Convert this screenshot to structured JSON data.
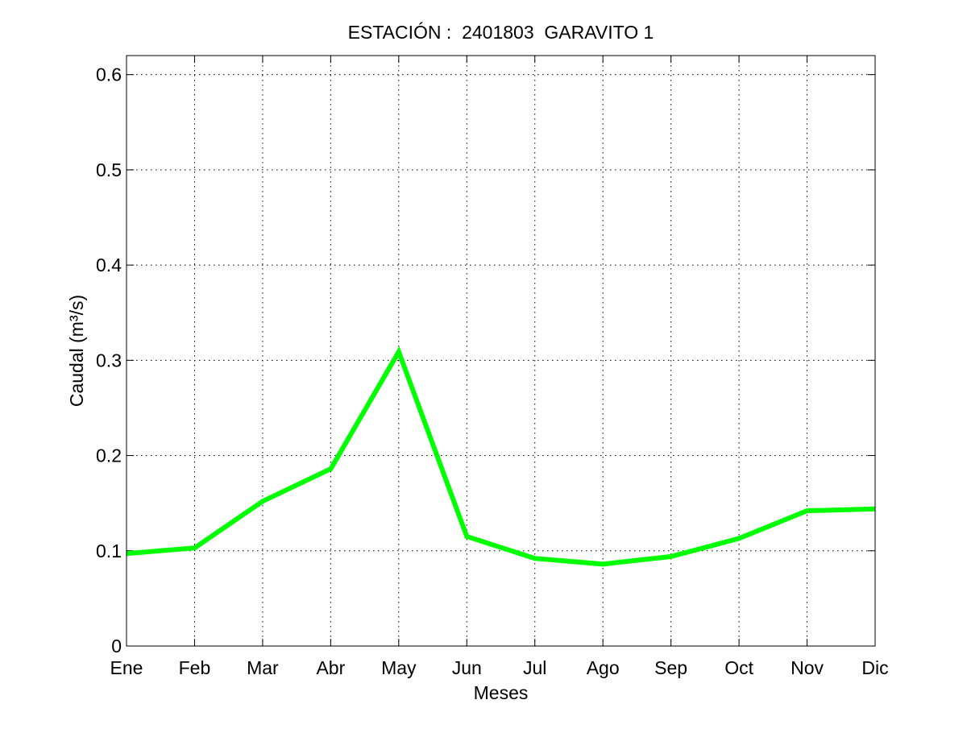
{
  "chart_data": {
    "type": "line",
    "title": "ESTACIÓN :  2401803  GARAVITO 1",
    "xlabel": "Meses",
    "ylabel": "Caudal (m³/s)",
    "categories": [
      "Ene",
      "Feb",
      "Mar",
      "Abr",
      "May",
      "Jun",
      "Jul",
      "Ago",
      "Sep",
      "Oct",
      "Nov",
      "Dic"
    ],
    "ylim": [
      0,
      0.62
    ],
    "yticks": [
      0,
      0.1,
      0.2,
      0.3,
      0.4,
      0.5,
      0.6
    ],
    "ytick_labels": [
      "0",
      "0.1",
      "0.2",
      "0.3",
      "0.4",
      "0.5",
      "0.6"
    ],
    "grid": true,
    "series": [
      {
        "color": "#00ff00",
        "values": [
          0.097,
          0.103,
          0.152,
          0.186,
          0.309,
          0.115,
          0.092,
          0.086,
          0.094,
          0.113,
          0.142,
          0.144
        ]
      }
    ]
  }
}
